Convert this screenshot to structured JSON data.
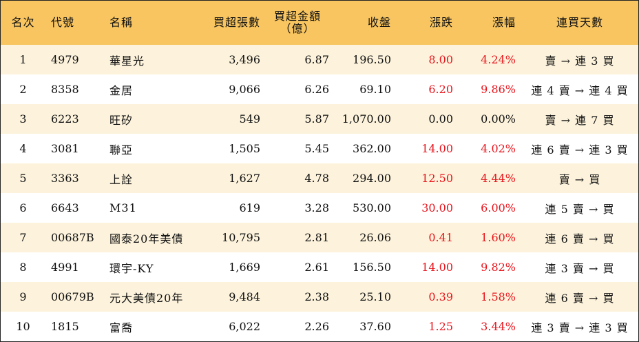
{
  "header": {
    "rank": "名次",
    "code": "代號",
    "name": "名稱",
    "net_buy_lots": "買超張數",
    "net_buy_amount_line1": "買超金額",
    "net_buy_amount_line2": "（億）",
    "close": "收盤",
    "change": "漲跌",
    "change_pct": "漲幅",
    "consecutive_days": "連買天數"
  },
  "rows": [
    {
      "rank": "1",
      "code": "4979",
      "name": "華星光",
      "net_buy_lots": "3,496",
      "net_buy_amount": "6.87",
      "close": "196.50",
      "change": "8.00",
      "change_pct": "4.24%",
      "consecutive_days": "賣 → 連 3 買",
      "trend": "up"
    },
    {
      "rank": "2",
      "code": "8358",
      "name": "金居",
      "net_buy_lots": "9,066",
      "net_buy_amount": "6.26",
      "close": "69.10",
      "change": "6.20",
      "change_pct": "9.86%",
      "consecutive_days": "連 4 賣 → 連 4 買",
      "trend": "up"
    },
    {
      "rank": "3",
      "code": "6223",
      "name": "旺矽",
      "net_buy_lots": "549",
      "net_buy_amount": "5.87",
      "close": "1,070.00",
      "change": "0.00",
      "change_pct": "0.00%",
      "consecutive_days": "賣 → 連 7 買",
      "trend": "flat"
    },
    {
      "rank": "4",
      "code": "3081",
      "name": "聯亞",
      "net_buy_lots": "1,505",
      "net_buy_amount": "5.45",
      "close": "362.00",
      "change": "14.00",
      "change_pct": "4.02%",
      "consecutive_days": "連 6 賣 → 連 3 買",
      "trend": "up"
    },
    {
      "rank": "5",
      "code": "3363",
      "name": "上詮",
      "net_buy_lots": "1,627",
      "net_buy_amount": "4.78",
      "close": "294.00",
      "change": "12.50",
      "change_pct": "4.44%",
      "consecutive_days": "賣 → 買",
      "trend": "up"
    },
    {
      "rank": "6",
      "code": "6643",
      "name": "M31",
      "net_buy_lots": "619",
      "net_buy_amount": "3.28",
      "close": "530.00",
      "change": "30.00",
      "change_pct": "6.00%",
      "consecutive_days": "連 5 賣 → 買",
      "trend": "up"
    },
    {
      "rank": "7",
      "code": "00687B",
      "name": "國泰20年美債",
      "net_buy_lots": "10,795",
      "net_buy_amount": "2.81",
      "close": "26.06",
      "change": "0.41",
      "change_pct": "1.60%",
      "consecutive_days": "連 6 賣 → 買",
      "trend": "up"
    },
    {
      "rank": "8",
      "code": "4991",
      "name": "環宇-KY",
      "net_buy_lots": "1,669",
      "net_buy_amount": "2.61",
      "close": "156.50",
      "change": "14.00",
      "change_pct": "9.82%",
      "consecutive_days": "連 3 賣 → 買",
      "trend": "up"
    },
    {
      "rank": "9",
      "code": "00679B",
      "name": "元大美債20年",
      "net_buy_lots": "9,484",
      "net_buy_amount": "2.38",
      "close": "25.10",
      "change": "0.39",
      "change_pct": "1.58%",
      "consecutive_days": "連 6 賣 → 買",
      "trend": "up"
    },
    {
      "rank": "10",
      "code": "1815",
      "name": "富喬",
      "net_buy_lots": "6,022",
      "net_buy_amount": "2.26",
      "close": "37.60",
      "change": "1.25",
      "change_pct": "3.44%",
      "consecutive_days": "連 3 賣 → 連 3 買",
      "trend": "up"
    }
  ],
  "colors": {
    "header_bg": "#f8c560",
    "stripe_bg": "#fdf3dc",
    "up_text": "#e8141c"
  }
}
